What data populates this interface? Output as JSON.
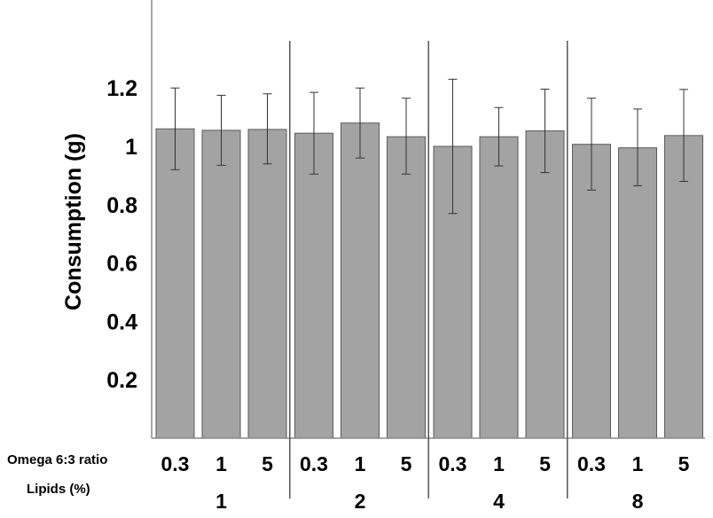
{
  "chart_data": {
    "type": "bar",
    "ylabel": "Consumption (g)",
    "ylim": [
      0,
      1.5
    ],
    "yticks": [
      "0.2",
      "0.4",
      "0.6",
      "0.8",
      "1",
      "1.2"
    ],
    "x_row_label": "Omega 6:3 ratio",
    "group_row_label": "Lipids (%)",
    "groups": [
      {
        "label": "1",
        "bars": [
          {
            "label": "0.3",
            "value": 1.06,
            "err_low": 0.92,
            "err_high": 1.2
          },
          {
            "label": "1",
            "value": 1.055,
            "err_low": 0.935,
            "err_high": 1.175
          },
          {
            "label": "5",
            "value": 1.058,
            "err_low": 0.94,
            "err_high": 1.18
          }
        ]
      },
      {
        "label": "2",
        "bars": [
          {
            "label": "0.3",
            "value": 1.045,
            "err_low": 0.905,
            "err_high": 1.185
          },
          {
            "label": "1",
            "value": 1.08,
            "err_low": 0.96,
            "err_high": 1.2
          },
          {
            "label": "5",
            "value": 1.033,
            "err_low": 0.905,
            "err_high": 1.165
          }
        ]
      },
      {
        "label": "4",
        "bars": [
          {
            "label": "0.3",
            "value": 1.0,
            "err_low": 0.77,
            "err_high": 1.23
          },
          {
            "label": "1",
            "value": 1.033,
            "err_low": 0.933,
            "err_high": 1.133
          },
          {
            "label": "5",
            "value": 1.053,
            "err_low": 0.91,
            "err_high": 1.196
          }
        ]
      },
      {
        "label": "8",
        "bars": [
          {
            "label": "0.3",
            "value": 1.007,
            "err_low": 0.85,
            "err_high": 1.165
          },
          {
            "label": "1",
            "value": 0.995,
            "err_low": 0.865,
            "err_high": 1.128
          },
          {
            "label": "5",
            "value": 1.037,
            "err_low": 0.88,
            "err_high": 1.195
          }
        ]
      }
    ],
    "grid": false,
    "colors": {
      "bar_fill": "#a3a3a3",
      "bar_stroke": "#5a5a5a",
      "error_bar": "#333333",
      "axis": "#8a8a8a",
      "separator": "#555555"
    }
  }
}
